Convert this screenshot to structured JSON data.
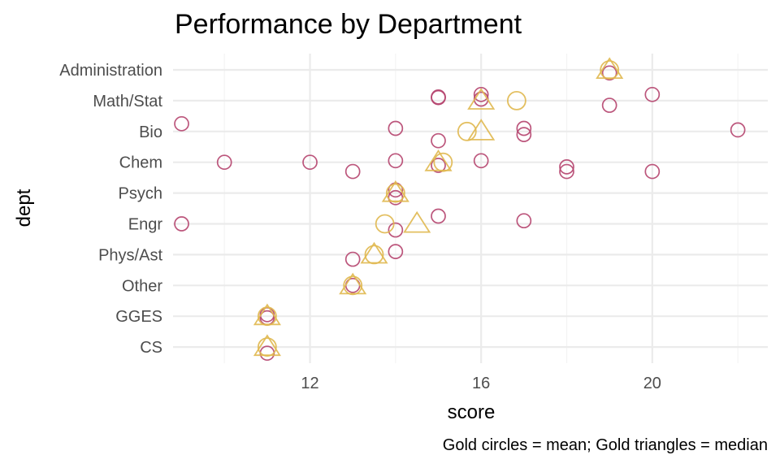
{
  "chart_data": {
    "type": "scatter",
    "title": "Performance by Department",
    "xlabel": "score",
    "ylabel": "dept",
    "caption": "Gold circles = mean; Gold triangles = median",
    "xlim": [
      8.8,
      22.7
    ],
    "x_ticks": [
      12,
      16,
      20
    ],
    "x_minor_ticks": [
      10,
      14,
      18,
      22
    ],
    "categories": [
      "Administration",
      "Math/Stat",
      "Bio",
      "Chem",
      "Psych",
      "Engr",
      "Phys/Ast",
      "Other",
      "GGES",
      "CS"
    ],
    "grid": true,
    "colors": {
      "points": "#b5446e",
      "summary": "#e0b84f"
    },
    "points": [
      {
        "dept": "Administration",
        "score": 19,
        "jitter": 0.1
      },
      {
        "dept": "Math/Stat",
        "score": 15,
        "jitter": -0.1
      },
      {
        "dept": "Math/Stat",
        "score": 15,
        "jitter": -0.12
      },
      {
        "dept": "Math/Stat",
        "score": 16,
        "jitter": -0.2
      },
      {
        "dept": "Math/Stat",
        "score": 16,
        "jitter": -0.05
      },
      {
        "dept": "Math/Stat",
        "score": 19,
        "jitter": 0.15
      },
      {
        "dept": "Math/Stat",
        "score": 20,
        "jitter": -0.2
      },
      {
        "dept": "Bio",
        "score": 9,
        "jitter": -0.25
      },
      {
        "dept": "Bio",
        "score": 14,
        "jitter": -0.1
      },
      {
        "dept": "Bio",
        "score": 15,
        "jitter": 0.3
      },
      {
        "dept": "Bio",
        "score": 17,
        "jitter": 0.1
      },
      {
        "dept": "Bio",
        "score": 17,
        "jitter": -0.1
      },
      {
        "dept": "Bio",
        "score": 22,
        "jitter": -0.05
      },
      {
        "dept": "Chem",
        "score": 10,
        "jitter": 0.0
      },
      {
        "dept": "Chem",
        "score": 12,
        "jitter": 0.0
      },
      {
        "dept": "Chem",
        "score": 13,
        "jitter": 0.3
      },
      {
        "dept": "Chem",
        "score": 14,
        "jitter": -0.05
      },
      {
        "dept": "Chem",
        "score": 15,
        "jitter": 0.1
      },
      {
        "dept": "Chem",
        "score": 16,
        "jitter": -0.05
      },
      {
        "dept": "Chem",
        "score": 18,
        "jitter": 0.3
      },
      {
        "dept": "Chem",
        "score": 18,
        "jitter": 0.15
      },
      {
        "dept": "Chem",
        "score": 20,
        "jitter": 0.3
      },
      {
        "dept": "Psych",
        "score": 14,
        "jitter": 0.15
      },
      {
        "dept": "Psych",
        "score": 14,
        "jitter": -0.1
      },
      {
        "dept": "Engr",
        "score": 9,
        "jitter": 0.0
      },
      {
        "dept": "Engr",
        "score": 14,
        "jitter": 0.2
      },
      {
        "dept": "Engr",
        "score": 15,
        "jitter": -0.25
      },
      {
        "dept": "Engr",
        "score": 17,
        "jitter": -0.1
      },
      {
        "dept": "Phys/Ast",
        "score": 13,
        "jitter": 0.15
      },
      {
        "dept": "Phys/Ast",
        "score": 14,
        "jitter": -0.1
      },
      {
        "dept": "Other",
        "score": 13,
        "jitter": 0.0
      },
      {
        "dept": "GGES",
        "score": 11,
        "jitter": 0.05
      },
      {
        "dept": "GGES",
        "score": 11,
        "jitter": -0.05
      },
      {
        "dept": "CS",
        "score": 11,
        "jitter": 0.2
      }
    ],
    "means": [
      {
        "dept": "Administration",
        "score": 19
      },
      {
        "dept": "Math/Stat",
        "score": 16.83
      },
      {
        "dept": "Bio",
        "score": 15.67
      },
      {
        "dept": "Chem",
        "score": 15.11
      },
      {
        "dept": "Psych",
        "score": 14
      },
      {
        "dept": "Engr",
        "score": 13.75
      },
      {
        "dept": "Phys/Ast",
        "score": 13.5
      },
      {
        "dept": "Other",
        "score": 13
      },
      {
        "dept": "GGES",
        "score": 11
      },
      {
        "dept": "CS",
        "score": 11
      }
    ],
    "medians": [
      {
        "dept": "Administration",
        "score": 19
      },
      {
        "dept": "Math/Stat",
        "score": 16
      },
      {
        "dept": "Bio",
        "score": 16
      },
      {
        "dept": "Chem",
        "score": 15
      },
      {
        "dept": "Psych",
        "score": 14
      },
      {
        "dept": "Engr",
        "score": 14.5
      },
      {
        "dept": "Phys/Ast",
        "score": 13.5
      },
      {
        "dept": "Other",
        "score": 13
      },
      {
        "dept": "GGES",
        "score": 11
      },
      {
        "dept": "CS",
        "score": 11
      }
    ]
  }
}
